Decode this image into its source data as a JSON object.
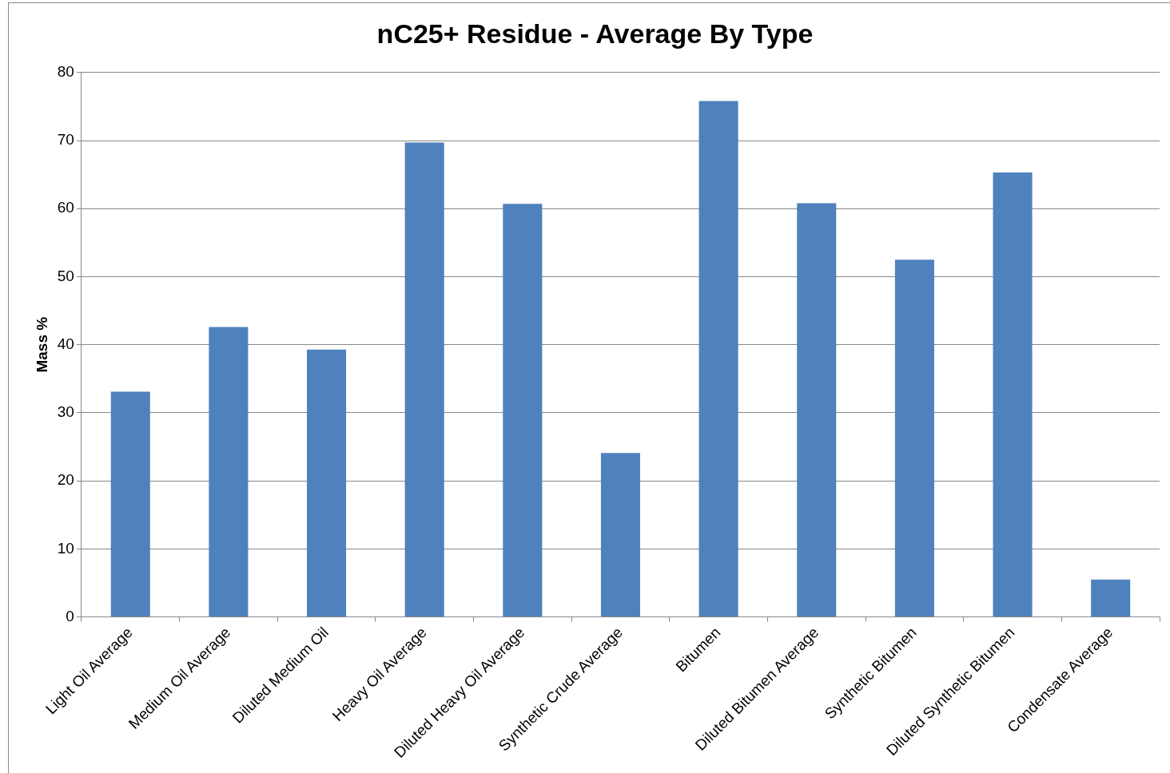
{
  "chart_data": {
    "type": "bar",
    "title": "nC25+ Residue - Average By Type",
    "ylabel": "Mass %",
    "categories": [
      "Light Oil Average",
      "Medium Oil Average",
      "Diluted Medium Oil",
      "Heavy Oil Average",
      "Diluted Heavy Oil Average",
      "Synthetic Crude Average",
      "Bitumen",
      "Diluted Bitumen Average",
      "Synthetic Bitumen",
      "Diluted Synthetic Bitumen",
      "Condensate Average"
    ],
    "values": [
      33.1,
      42.6,
      39.3,
      69.7,
      60.7,
      24.1,
      75.8,
      60.8,
      52.5,
      65.3,
      5.5
    ],
    "color": "#4f81bd",
    "ylim": [
      0,
      80
    ],
    "yticks": [
      0,
      10,
      20,
      30,
      40,
      50,
      60,
      70,
      80
    ],
    "grid": "y",
    "legend": false
  }
}
